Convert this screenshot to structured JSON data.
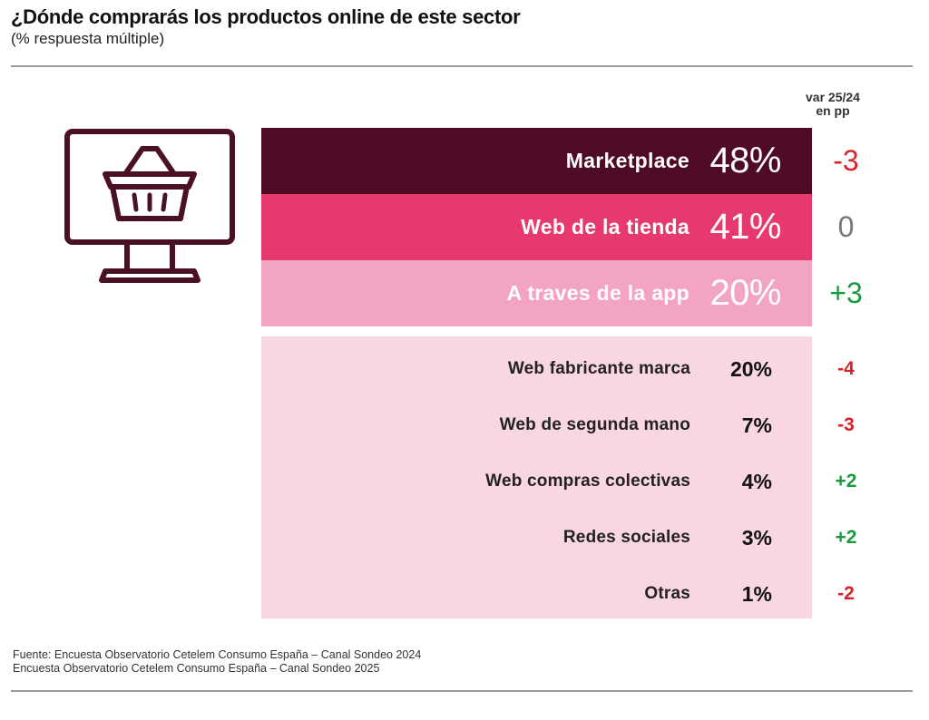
{
  "title": "¿Dónde comprarás los productos online de este sector",
  "subtitle": "(% respuesta múltiple)",
  "var_header": [
    "var 25/24",
    "en pp"
  ],
  "colors": {
    "marketplace": "#4f0a25",
    "web_tienda": "#e63a6e",
    "app": "#f3a4c4",
    "others_bg": "#f8d6e3",
    "negative": "#d7212b",
    "positive": "#1a9a3e",
    "neutral": "#777777",
    "icon": "#4a1024"
  },
  "icon": "computer-shopping-basket-icon",
  "chart_data": {
    "type": "bar",
    "categories": [
      "Marketplace",
      "Web de la tienda",
      "A traves de la app",
      "Web fabricante marca",
      "Web de segunda mano",
      "Web compras colectivas",
      "Redes sociales",
      "Otras"
    ],
    "values": [
      48,
      41,
      20,
      20,
      7,
      4,
      3,
      1
    ],
    "labels": [
      "48%",
      "41%",
      "20%",
      "20%",
      "7%",
      "4%",
      "3%",
      "1%"
    ],
    "variation_pp": [
      -3,
      0,
      3,
      -4,
      -3,
      2,
      2,
      -2
    ],
    "variation_labels": [
      "-3",
      "0",
      "+3",
      "-4",
      "-3",
      "+2",
      "+2",
      "-2"
    ],
    "unit": "%"
  },
  "source": [
    "Fuente: Encuesta Observatorio Cetelem Consumo España – Canal Sondeo 2024",
    "Encuesta Observatorio Cetelem Consumo España – Canal Sondeo 2025"
  ]
}
